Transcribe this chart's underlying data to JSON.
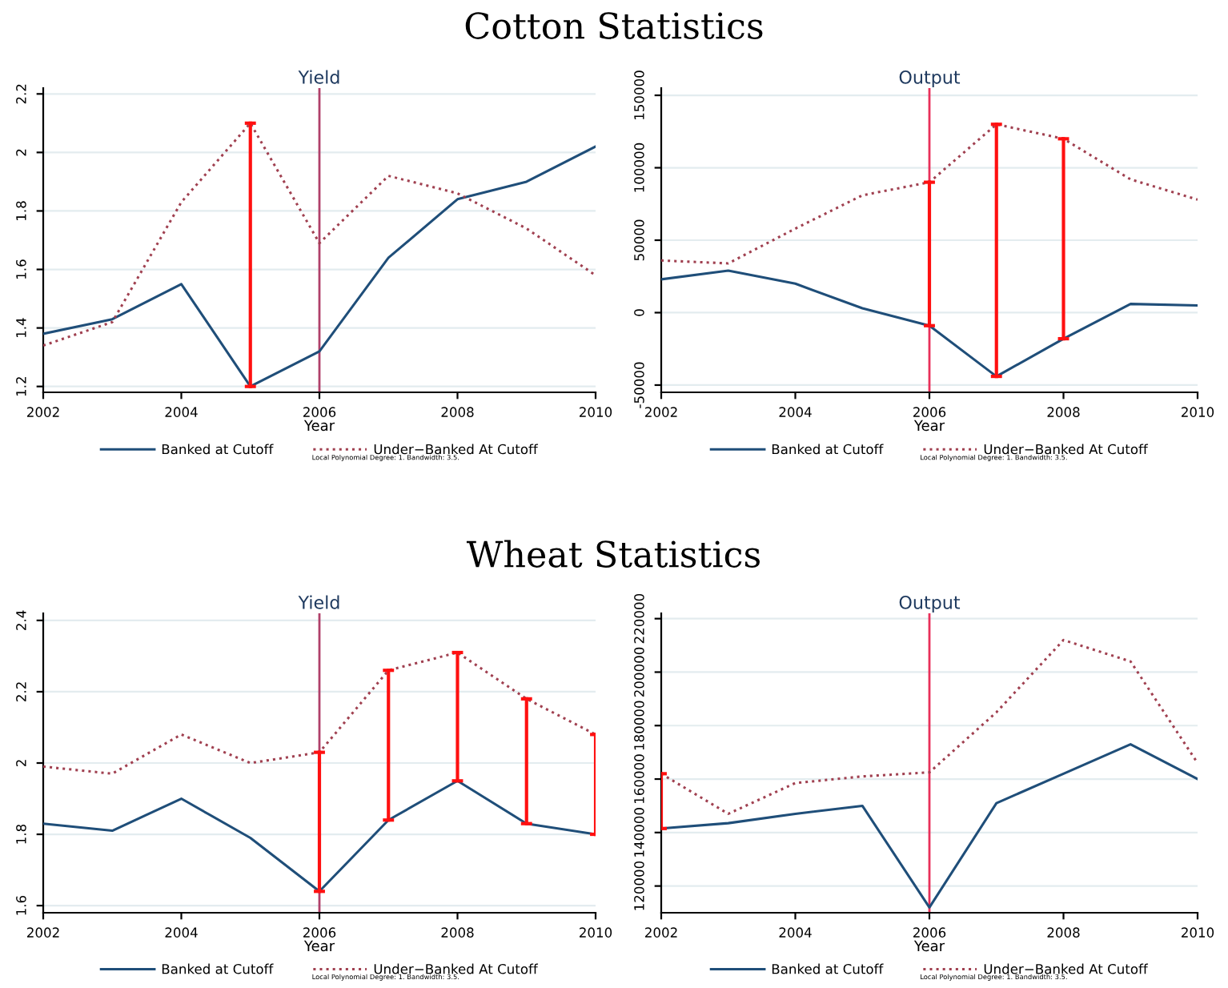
{
  "chart_data": [
    {
      "type": "line",
      "title": "Yield",
      "xlabel": "Year",
      "x": [
        2002,
        2003,
        2004,
        2005,
        2006,
        2007,
        2008,
        2009,
        2010
      ],
      "xlim": [
        2002,
        2010
      ],
      "xticks": [
        2002,
        2004,
        2006,
        2008,
        2010
      ],
      "ylim": [
        1.18,
        2.22
      ],
      "yticks": [
        1.2,
        1.4,
        1.6,
        1.8,
        2,
        2.2
      ],
      "grid": "y",
      "legend": "bottom",
      "annotations": [
        "Cotton Statistics",
        "Local Polynomial Degree: 1. Bandwidth: 3.5."
      ],
      "ref_lines": [
        {
          "axis": "x",
          "value": 2006,
          "color": "#b0406a"
        }
      ],
      "series": [
        {
          "name": "Banked at Cutoff",
          "color": "#1f4e79",
          "line_style": "solid",
          "values": [
            1.38,
            1.43,
            1.55,
            1.2,
            1.32,
            1.64,
            1.84,
            1.9,
            2.02
          ]
        },
        {
          "name": "Under−Banked At Cutoff",
          "color": "#a04050",
          "line_style": "dotted",
          "values": [
            1.34,
            1.42,
            1.83,
            2.1,
            1.69,
            1.92,
            1.86,
            1.74,
            1.58
          ],
          "errors": [
            null,
            null,
            null,
            [
              1.2,
              2.1
            ],
            null,
            null,
            null,
            null,
            null
          ]
        }
      ]
    },
    {
      "type": "line",
      "title": "Output",
      "xlabel": "Year",
      "x": [
        2002,
        2003,
        2004,
        2005,
        2006,
        2007,
        2008,
        2009,
        2010
      ],
      "xlim": [
        2002,
        2010
      ],
      "xticks": [
        2002,
        2004,
        2006,
        2008,
        2010
      ],
      "ylim": [
        -55000,
        155000
      ],
      "yticks": [
        -50000,
        0,
        50000,
        100000,
        150000
      ],
      "grid": "y",
      "legend": "bottom",
      "annotations": [
        "Local Polynomial Degree: 1. Bandwidth: 3.5."
      ],
      "ref_lines": [
        {
          "axis": "x",
          "value": 2006,
          "color": "#e8305a"
        }
      ],
      "series": [
        {
          "name": "Banked at Cutoff",
          "color": "#1f4e79",
          "line_style": "solid",
          "values": [
            23000,
            29000,
            20000,
            3000,
            -9000,
            -44000,
            -18000,
            6000,
            5000
          ]
        },
        {
          "name": "Under−Banked At Cutoff",
          "color": "#a04050",
          "line_style": "dotted",
          "values": [
            36000,
            34000,
            58000,
            81000,
            90000,
            130000,
            120000,
            92000,
            78000
          ],
          "errors": [
            null,
            null,
            null,
            null,
            [
              -9000,
              90000
            ],
            [
              -44000,
              130000
            ],
            [
              -18000,
              120000
            ],
            null,
            null
          ]
        }
      ]
    },
    {
      "type": "line",
      "title": "Yield",
      "xlabel": "Year",
      "x": [
        2002,
        2003,
        2004,
        2005,
        2006,
        2007,
        2008,
        2009,
        2010
      ],
      "xlim": [
        2002,
        2010
      ],
      "xticks": [
        2002,
        2004,
        2006,
        2008,
        2010
      ],
      "ylim": [
        1.58,
        2.42
      ],
      "yticks": [
        1.6,
        1.8,
        2,
        2.2,
        2.4
      ],
      "grid": "y",
      "legend": "bottom",
      "annotations": [
        "Wheat Statistics",
        "Local Polynomial Degree: 1. Bandwidth: 3.5."
      ],
      "ref_lines": [
        {
          "axis": "x",
          "value": 2006,
          "color": "#b0406a"
        }
      ],
      "series": [
        {
          "name": "Banked at Cutoff",
          "color": "#1f4e79",
          "line_style": "solid",
          "values": [
            1.83,
            1.81,
            1.9,
            1.79,
            1.64,
            1.84,
            1.95,
            1.83,
            1.8
          ]
        },
        {
          "name": "Under−Banked At Cutoff",
          "color": "#a04050",
          "line_style": "dotted",
          "values": [
            1.99,
            1.97,
            2.08,
            2.0,
            2.03,
            2.26,
            2.31,
            2.18,
            2.08
          ],
          "errors": [
            null,
            null,
            null,
            null,
            [
              1.64,
              2.03
            ],
            [
              1.84,
              2.26
            ],
            [
              1.95,
              2.31
            ],
            [
              1.83,
              2.18
            ],
            [
              1.8,
              2.08
            ]
          ]
        }
      ]
    },
    {
      "type": "line",
      "title": "Output",
      "xlabel": "Year",
      "x": [
        2002,
        2003,
        2004,
        2005,
        2006,
        2007,
        2008,
        2009,
        2010
      ],
      "xlim": [
        2002,
        2010
      ],
      "xticks": [
        2002,
        2004,
        2006,
        2008,
        2010
      ],
      "ylim": [
        110000,
        222000
      ],
      "yticks": [
        120000,
        140000,
        160000,
        180000,
        200000,
        220000
      ],
      "grid": "y",
      "legend": "bottom",
      "annotations": [
        "Local Polynomial Degree: 1. Bandwidth: 3.5."
      ],
      "ref_lines": [
        {
          "axis": "x",
          "value": 2006,
          "color": "#e8305a"
        }
      ],
      "series": [
        {
          "name": "Banked at Cutoff",
          "color": "#1f4e79",
          "line_style": "solid",
          "values": [
            141500,
            143500,
            147000,
            150000,
            112000,
            151000,
            162000,
            173000,
            160000
          ]
        },
        {
          "name": "Under−Banked At Cutoff",
          "color": "#a04050",
          "line_style": "dotted",
          "values": [
            162000,
            147000,
            158500,
            161000,
            162500,
            185000,
            212000,
            204000,
            166000
          ],
          "errors": [
            [
              141500,
              162000
            ],
            null,
            null,
            null,
            null,
            null,
            null,
            null,
            null
          ]
        }
      ]
    }
  ]
}
